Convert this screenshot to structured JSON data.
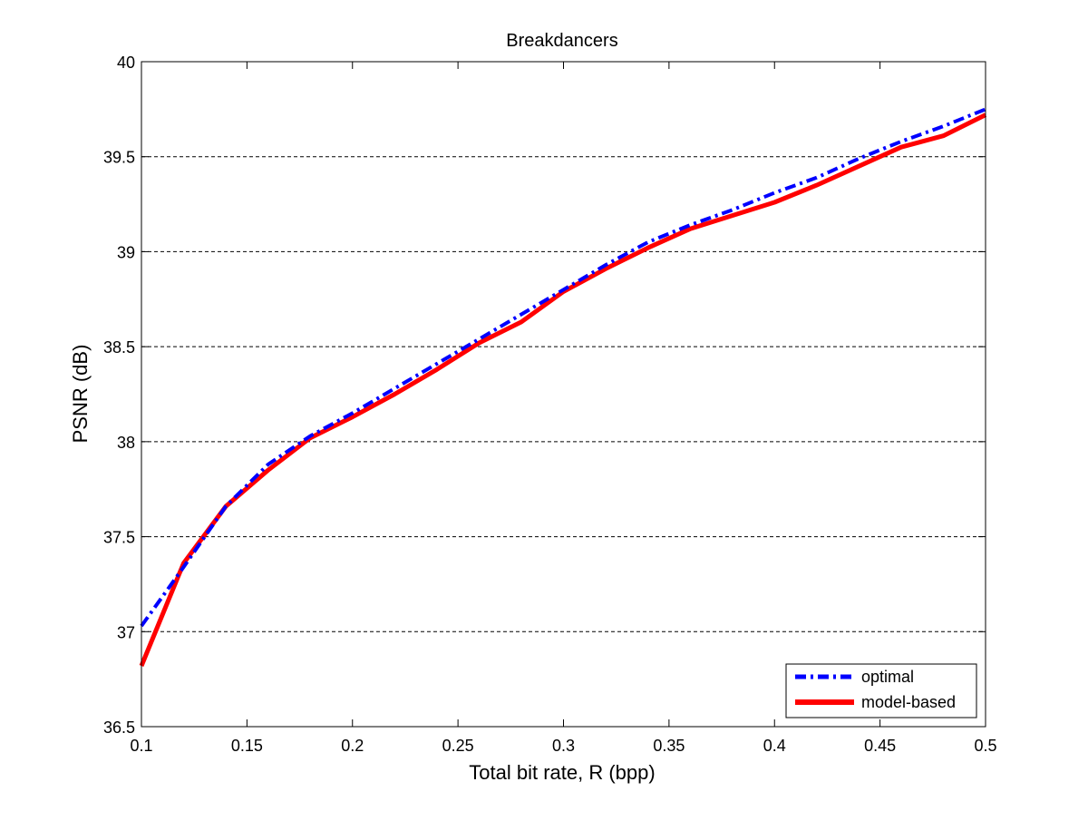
{
  "chart_data": {
    "type": "line",
    "title": "Breakdancers",
    "xlabel": "Total bit rate, R (bpp)",
    "ylabel": "PSNR (dB)",
    "xlim": [
      0.1,
      0.5
    ],
    "ylim": [
      36.5,
      40
    ],
    "xticks": [
      0.1,
      0.15,
      0.2,
      0.25,
      0.3,
      0.35,
      0.4,
      0.45,
      0.5
    ],
    "xtick_labels": [
      "0.1",
      "0.15",
      "0.2",
      "0.25",
      "0.3",
      "0.35",
      "0.4",
      "0.45",
      "0.5"
    ],
    "yticks": [
      36.5,
      37,
      37.5,
      38,
      38.5,
      39,
      39.5,
      40
    ],
    "ytick_labels": [
      "36.5",
      "37",
      "37.5",
      "38",
      "38.5",
      "39",
      "39.5",
      "40"
    ],
    "grid": "horizontal dashed",
    "legend_position": "bottom-right",
    "series": [
      {
        "name": "optimal",
        "color": "#0000ff",
        "line_style": "dash-dot",
        "x": [
          0.1,
          0.12,
          0.14,
          0.16,
          0.18,
          0.2,
          0.22,
          0.24,
          0.26,
          0.28,
          0.3,
          0.32,
          0.34,
          0.36,
          0.38,
          0.4,
          0.42,
          0.44,
          0.46,
          0.48,
          0.5
        ],
        "y": [
          37.03,
          37.34,
          37.66,
          37.88,
          38.03,
          38.15,
          38.28,
          38.41,
          38.54,
          38.67,
          38.8,
          38.93,
          39.05,
          39.14,
          39.22,
          39.31,
          39.39,
          39.49,
          39.58,
          39.66,
          39.75
        ]
      },
      {
        "name": "model-based",
        "color": "#ff0000",
        "line_style": "solid",
        "x": [
          0.1,
          0.12,
          0.14,
          0.16,
          0.18,
          0.2,
          0.22,
          0.24,
          0.26,
          0.28,
          0.3,
          0.32,
          0.34,
          0.36,
          0.38,
          0.4,
          0.42,
          0.44,
          0.46,
          0.48,
          0.5
        ],
        "y": [
          36.82,
          37.36,
          37.66,
          37.85,
          38.02,
          38.13,
          38.25,
          38.38,
          38.52,
          38.63,
          38.79,
          38.91,
          39.02,
          39.12,
          39.19,
          39.26,
          39.35,
          39.45,
          39.55,
          39.61,
          39.72
        ]
      }
    ]
  }
}
